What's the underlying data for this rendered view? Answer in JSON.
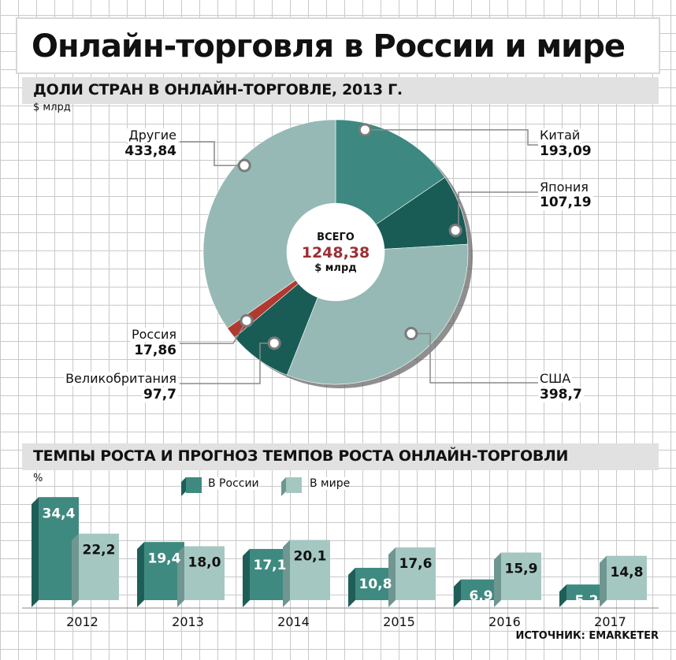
{
  "title": "Онлайн-торговля в России и мире",
  "section1": {
    "heading": "ДОЛИ СТРАН В ОНЛАЙН-ТОРГОВЛЕ, 2013 Г.",
    "unit": "$ млрд",
    "center": {
      "label": "ВСЕГО",
      "value": "1248,38",
      "unit": "$ млрд"
    }
  },
  "section2": {
    "heading": "ТЕМПЫ РОСТА И ПРОГНОЗ ТЕМПОВ РОСТА ОНЛАЙН-ТОРГОВЛИ",
    "unit": "%"
  },
  "source": "ИСТОЧНИК: EMARKETER",
  "colors": {
    "russia_bar": "#3f8a80",
    "world_bar": "#a5c7c2",
    "pie_china": "#3d8880",
    "pie_japan": "#195c56",
    "pie_usa": "#96b9b5",
    "pie_uk": "#195c56",
    "pie_russia": "#b13a30",
    "pie_other": "#96b9b5",
    "total_value": "#9c2f33"
  },
  "chart_data": [
    {
      "type": "pie",
      "title": "ДОЛИ СТРАН В ОНЛАЙН-ТОРГОВЛЕ, 2013 Г.",
      "unit": "$ млрд",
      "total": 1248.38,
      "slices": [
        {
          "label": "Китай",
          "value": 193.09,
          "display": "193,09"
        },
        {
          "label": "Япония",
          "value": 107.19,
          "display": "107,19"
        },
        {
          "label": "США",
          "value": 398.7,
          "display": "398,7"
        },
        {
          "label": "Великобритания",
          "value": 97.7,
          "display": "97,7"
        },
        {
          "label": "Россия",
          "value": 17.86,
          "display": "17,86"
        },
        {
          "label": "Другие",
          "value": 433.84,
          "display": "433,84"
        }
      ]
    },
    {
      "type": "bar",
      "title": "ТЕМПЫ РОСТА И ПРОГНОЗ ТЕМПОВ РОСТА ОНЛАЙН-ТОРГОВЛИ",
      "ylabel": "%",
      "categories": [
        "2012",
        "2013",
        "2014",
        "2015",
        "2016",
        "2017"
      ],
      "series": [
        {
          "name": "В России",
          "values": [
            34.4,
            19.4,
            17.1,
            10.8,
            6.9,
            5.2
          ],
          "display": [
            "34,4",
            "19,4",
            "17,1",
            "10,8",
            "6,9",
            "5,2"
          ]
        },
        {
          "name": "В мире",
          "values": [
            22.2,
            18.0,
            20.1,
            17.6,
            15.9,
            14.8
          ],
          "display": [
            "22,2",
            "18,0",
            "20,1",
            "17,6",
            "15,9",
            "14,8"
          ]
        }
      ]
    }
  ]
}
